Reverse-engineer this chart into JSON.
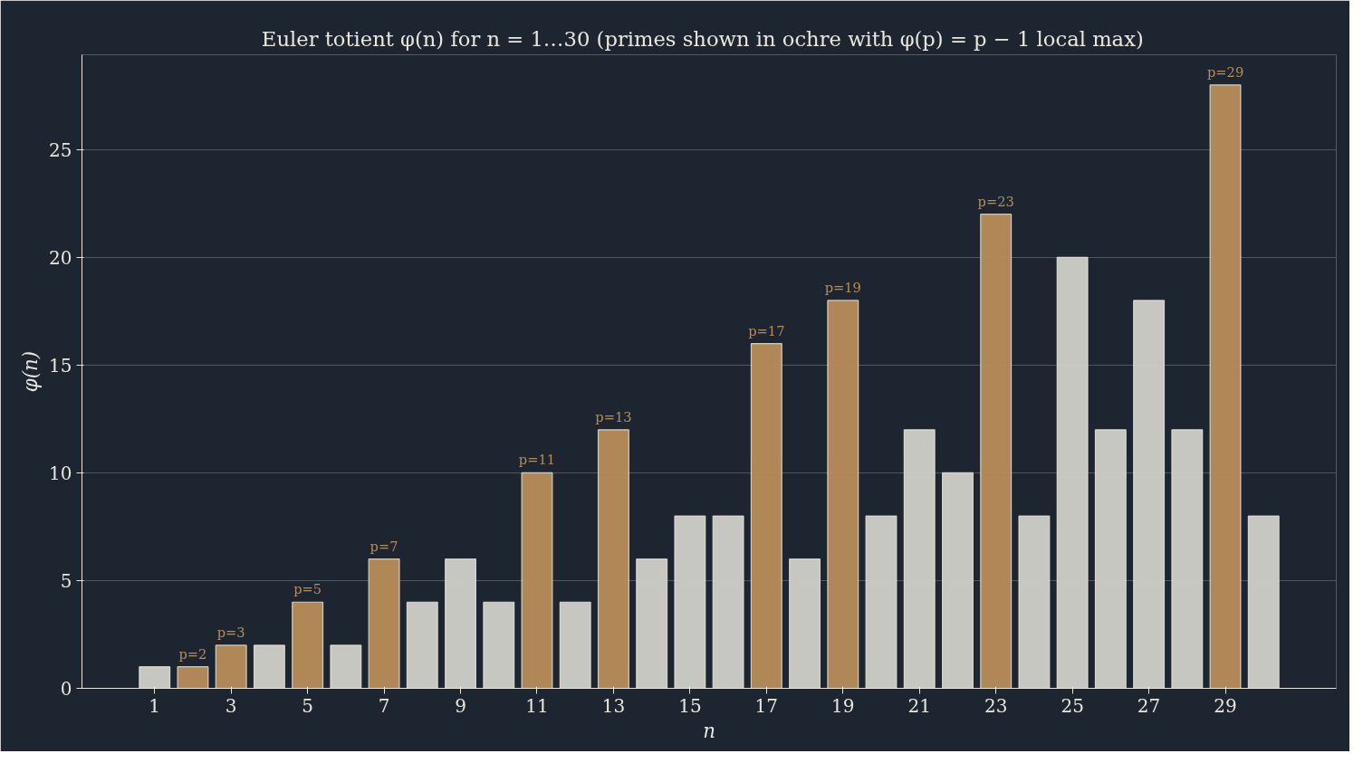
{
  "chart_data": {
    "type": "bar",
    "title": "Euler totient φ(n) for n = 1…30   (primes shown in ochre with φ(p) = p − 1 local max)",
    "xlabel": "n",
    "ylabel": "φ(n)",
    "x": [
      1,
      2,
      3,
      4,
      5,
      6,
      7,
      8,
      9,
      10,
      11,
      12,
      13,
      14,
      15,
      16,
      17,
      18,
      19,
      20,
      21,
      22,
      23,
      24,
      25,
      26,
      27,
      28,
      29,
      30
    ],
    "values": [
      1,
      1,
      2,
      2,
      4,
      2,
      6,
      4,
      6,
      4,
      10,
      4,
      12,
      6,
      8,
      8,
      16,
      6,
      18,
      8,
      12,
      10,
      22,
      8,
      20,
      12,
      18,
      12,
      28,
      8
    ],
    "colors": [
      "#d0d0c8",
      "#b88c5a",
      "#b88c5a",
      "#d0d0c8",
      "#b88c5a",
      "#d0d0c8",
      "#b88c5a",
      "#d0d0c8",
      "#d0d0c8",
      "#d0d0c8",
      "#b88c5a",
      "#d0d0c8",
      "#b88c5a",
      "#d0d0c8",
      "#d0d0c8",
      "#d0d0c8",
      "#b88c5a",
      "#d0d0c8",
      "#b88c5a",
      "#d0d0c8",
      "#d0d0c8",
      "#d0d0c8",
      "#b88c5a",
      "#d0d0c8",
      "#d0d0c8",
      "#d0d0c8",
      "#d0d0c8",
      "#d0d0c8",
      "#b88c5a",
      "#d0d0c8"
    ],
    "xlim": [
      -0.9,
      31.9
    ],
    "ylim": [
      0,
      29.4
    ],
    "xticks": [
      1,
      3,
      5,
      7,
      9,
      11,
      13,
      15,
      17,
      19,
      21,
      23,
      25,
      27,
      29
    ],
    "yticks": [
      0,
      5,
      10,
      15,
      20,
      25
    ],
    "grid": "y",
    "annotations": [
      {
        "text": "p=2",
        "x": 2,
        "y": 1
      },
      {
        "text": "p=3",
        "x": 3,
        "y": 2
      },
      {
        "text": "p=5",
        "x": 5,
        "y": 4
      },
      {
        "text": "p=7",
        "x": 7,
        "y": 6
      },
      {
        "text": "p=11",
        "x": 11,
        "y": 10
      },
      {
        "text": "p=13",
        "x": 13,
        "y": 12
      },
      {
        "text": "p=17",
        "x": 17,
        "y": 16
      },
      {
        "text": "p=19",
        "x": 19,
        "y": 18
      },
      {
        "text": "p=23",
        "x": 23,
        "y": 22
      },
      {
        "text": "p=29",
        "x": 29,
        "y": 28
      }
    ]
  }
}
